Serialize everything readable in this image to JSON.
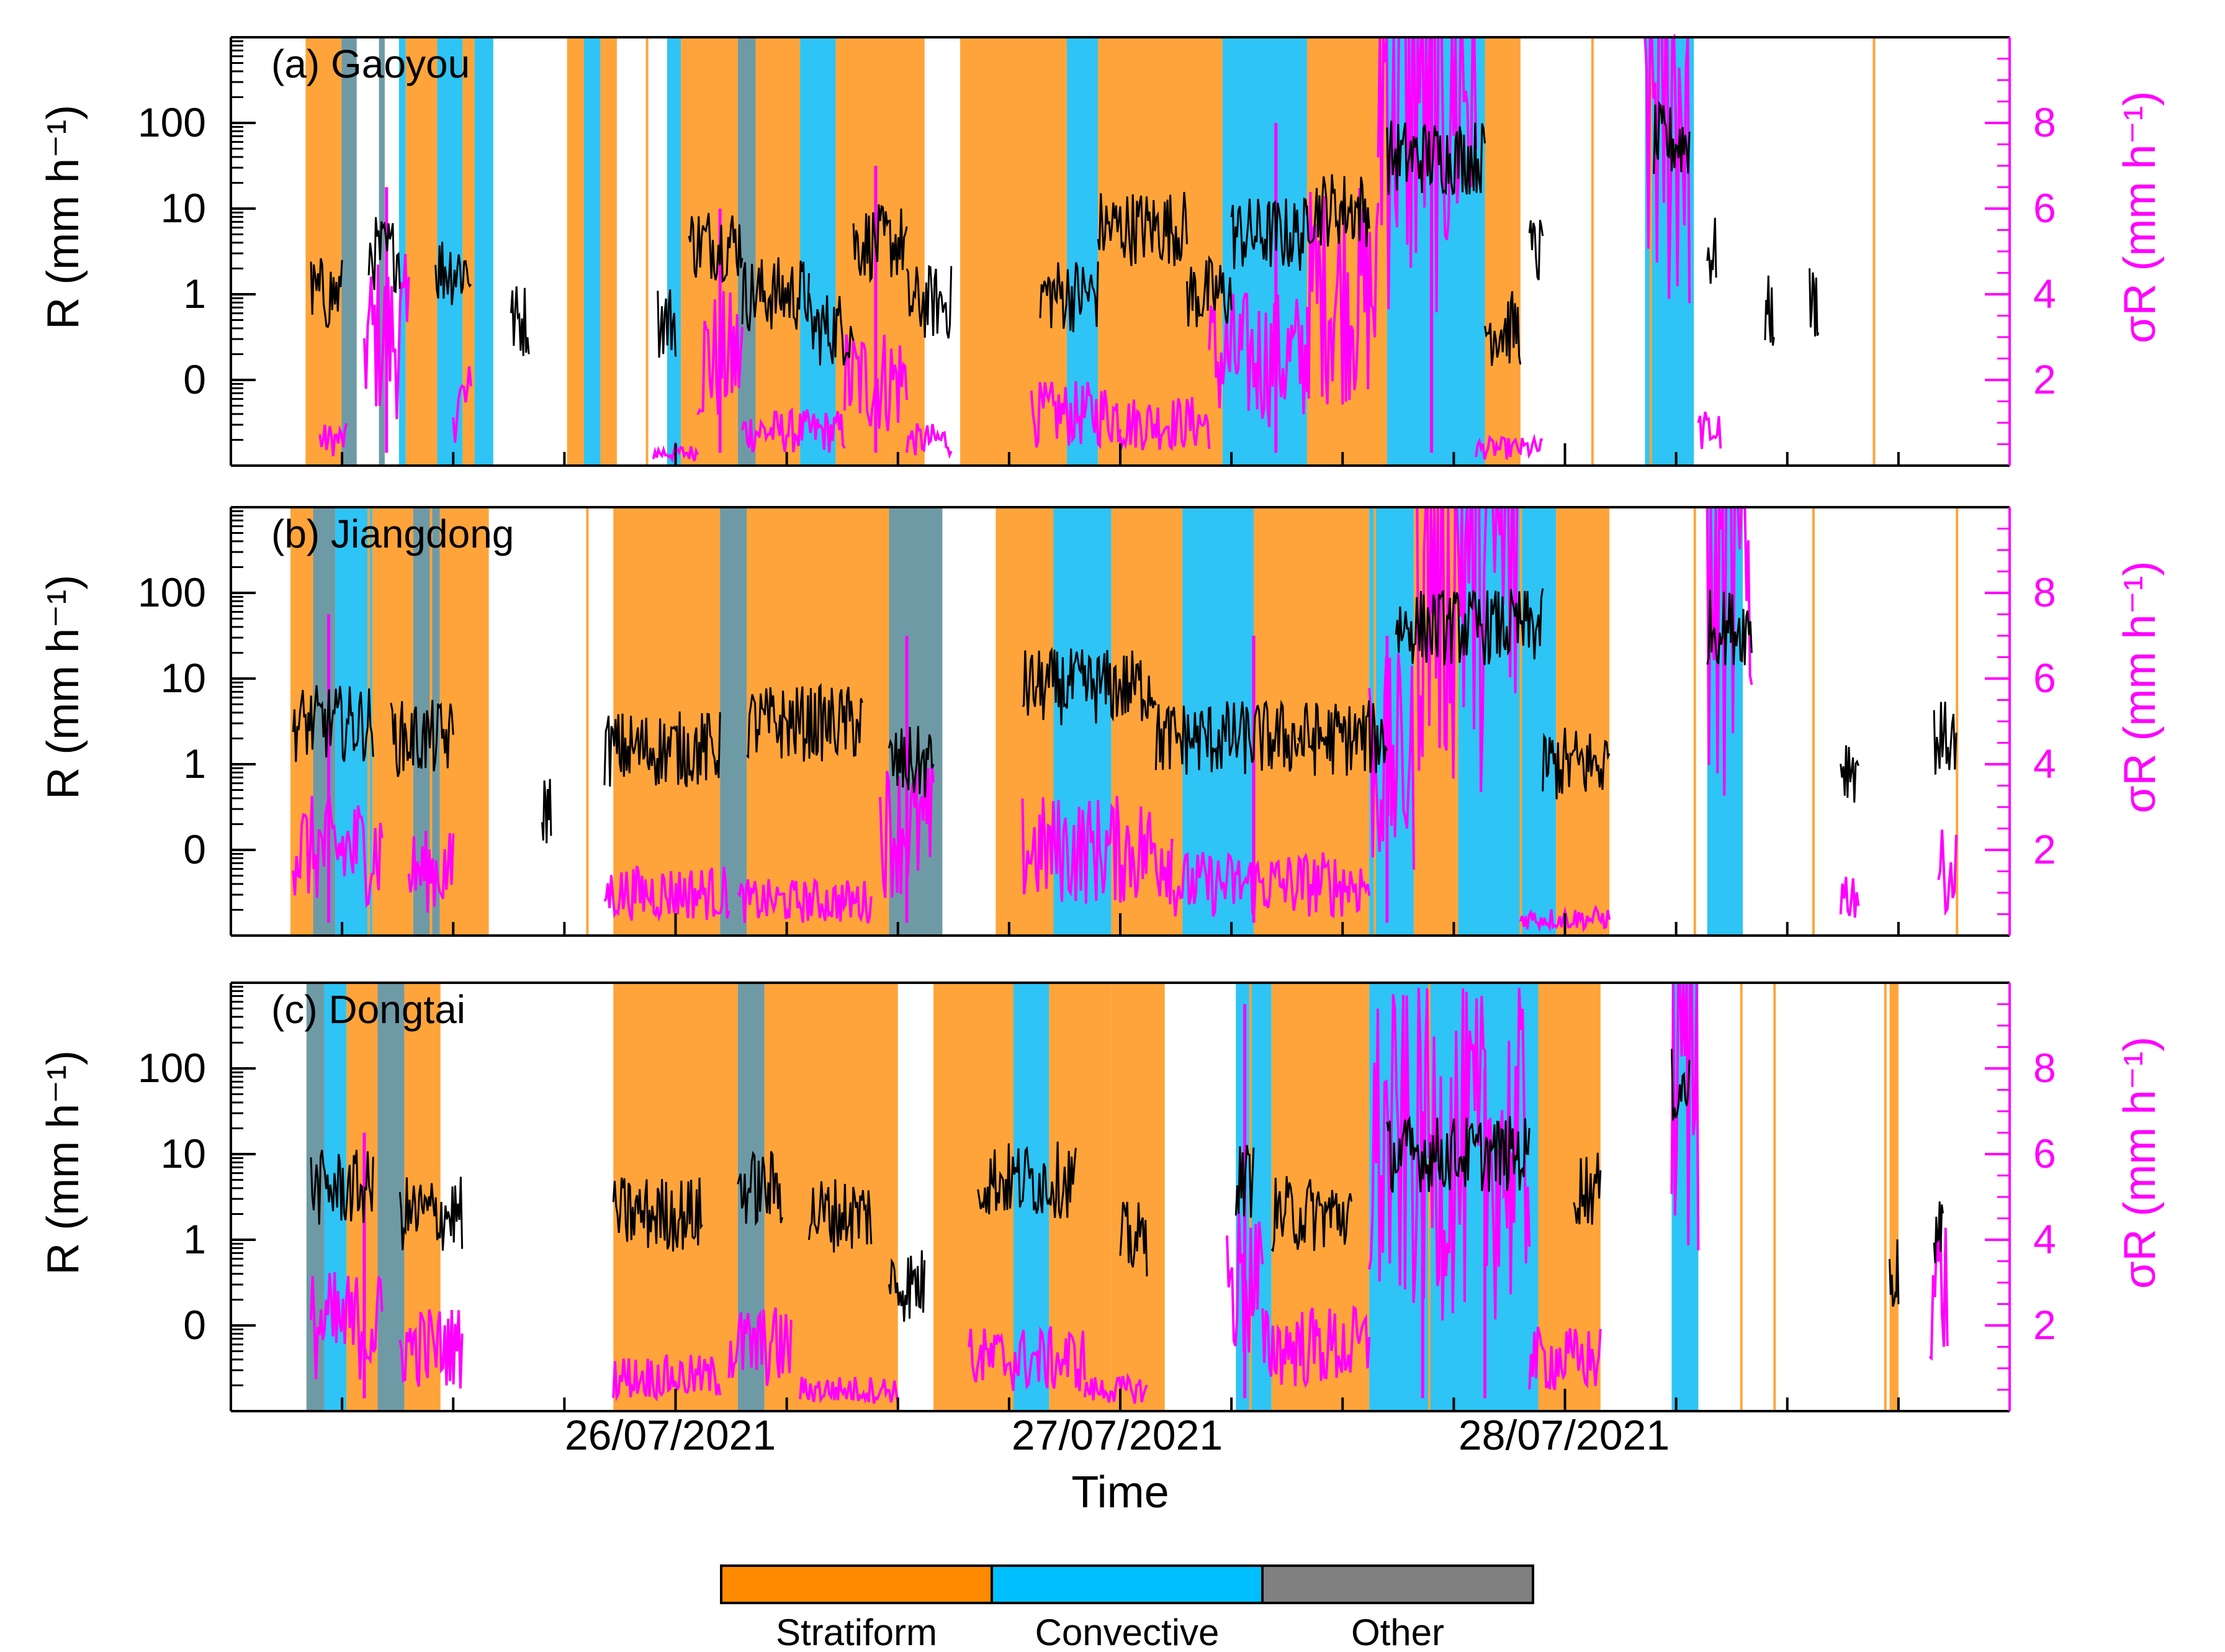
{
  "figure": {
    "xlabel": "Time",
    "x_ticks": [
      "26/07/2021",
      "27/07/2021",
      "28/07/2021"
    ],
    "legend": {
      "placement": "bottom-center",
      "entries": [
        {
          "label": "Stratiform",
          "color": "#FF8A00"
        },
        {
          "label": "Convective",
          "color": "#00BFFF"
        },
        {
          "label": "Other",
          "color": "#808080"
        }
      ]
    }
  },
  "colors": {
    "stratiform_band": "#FFA43A",
    "convective_band": "#2EC4F5",
    "other_band": "#6E9AA6",
    "rain_rate": "#000000",
    "sigma": "#FF00FF"
  },
  "chart_data": [
    {
      "type": "line",
      "station_label": "(a) Gaoyou",
      "x_range": [
        "25/07/2021 00:00",
        "29/07/2021 00:00"
      ],
      "y_left": {
        "label": "R (mm h⁻¹)",
        "scale": "log",
        "ticks": [
          "0",
          "1",
          "10",
          "100"
        ]
      },
      "y_right": {
        "label": "σR (mm h⁻¹)",
        "range": [
          0,
          10
        ],
        "ticks": [
          "2",
          "4",
          "6",
          "8"
        ]
      },
      "classification_periods": [
        {
          "start": 0.168,
          "end": 0.249,
          "class": "Stratiform"
        },
        {
          "start": 0.249,
          "end": 0.283,
          "class": "Other"
        },
        {
          "start": 0.333,
          "end": 0.346,
          "class": "Other"
        },
        {
          "start": 0.378,
          "end": 0.393,
          "class": "Convective"
        },
        {
          "start": 0.393,
          "end": 0.464,
          "class": "Stratiform"
        },
        {
          "start": 0.464,
          "end": 0.521,
          "class": "Convective"
        },
        {
          "start": 0.521,
          "end": 0.548,
          "class": "Stratiform"
        },
        {
          "start": 0.548,
          "end": 0.59,
          "class": "Convective"
        },
        {
          "start": 0.756,
          "end": 0.794,
          "class": "Stratiform"
        },
        {
          "start": 0.794,
          "end": 0.831,
          "class": "Convective"
        },
        {
          "start": 0.831,
          "end": 0.868,
          "class": "Stratiform"
        },
        {
          "start": 0.981,
          "end": 1.012,
          "class": "Convective"
        },
        {
          "start": 1.012,
          "end": 1.14,
          "class": "Stratiform"
        },
        {
          "start": 1.14,
          "end": 1.18,
          "class": "Other"
        },
        {
          "start": 1.18,
          "end": 1.28,
          "class": "Stratiform"
        },
        {
          "start": 1.28,
          "end": 1.36,
          "class": "Convective"
        },
        {
          "start": 1.36,
          "end": 1.56,
          "class": "Stratiform"
        },
        {
          "start": 1.64,
          "end": 1.88,
          "class": "Stratiform"
        },
        {
          "start": 1.88,
          "end": 1.95,
          "class": "Convective"
        },
        {
          "start": 1.95,
          "end": 2.23,
          "class": "Stratiform"
        },
        {
          "start": 2.23,
          "end": 2.42,
          "class": "Convective"
        },
        {
          "start": 2.42,
          "end": 2.6,
          "class": "Stratiform"
        },
        {
          "start": 2.6,
          "end": 2.82,
          "class": "Convective"
        },
        {
          "start": 2.82,
          "end": 2.9,
          "class": "Stratiform"
        },
        {
          "start": 3.18,
          "end": 3.29,
          "class": "Convective"
        }
      ],
      "rain_rate_segments": [
        {
          "start": 0.18,
          "end": 0.25,
          "level": 1
        },
        {
          "start": 0.31,
          "end": 0.38,
          "level": 3
        },
        {
          "start": 0.46,
          "end": 0.54,
          "level": 2
        },
        {
          "start": 0.63,
          "end": 0.67,
          "level": 0.5
        },
        {
          "start": 0.96,
          "end": 1.0,
          "level": 0.5
        },
        {
          "start": 1.03,
          "end": 1.15,
          "level": 4
        },
        {
          "start": 1.15,
          "end": 1.3,
          "level": 1
        },
        {
          "start": 1.3,
          "end": 1.4,
          "level": 0.4
        },
        {
          "start": 1.4,
          "end": 1.52,
          "level": 4
        },
        {
          "start": 1.52,
          "end": 1.62,
          "level": 0.8
        },
        {
          "start": 1.82,
          "end": 1.95,
          "level": 1
        },
        {
          "start": 1.95,
          "end": 2.15,
          "level": 6
        },
        {
          "start": 2.15,
          "end": 2.25,
          "level": 1
        },
        {
          "start": 2.25,
          "end": 2.42,
          "level": 5
        },
        {
          "start": 2.42,
          "end": 2.56,
          "level": 10
        },
        {
          "start": 2.6,
          "end": 2.82,
          "level": 40
        },
        {
          "start": 2.82,
          "end": 2.9,
          "level": 0.4
        },
        {
          "start": 2.92,
          "end": 2.95,
          "level": 3
        },
        {
          "start": 3.2,
          "end": 3.28,
          "level": 60
        },
        {
          "start": 3.32,
          "end": 3.34,
          "level": 3
        },
        {
          "start": 3.45,
          "end": 3.47,
          "level": 0.6
        },
        {
          "start": 3.55,
          "end": 3.57,
          "level": 0.8
        }
      ],
      "sigma_r_segments": [
        {
          "start": 0.2,
          "end": 0.26,
          "level": 0.6
        },
        {
          "start": 0.3,
          "end": 0.4,
          "level": 3
        },
        {
          "start": 0.5,
          "end": 0.54,
          "level": 1.5
        },
        {
          "start": 0.95,
          "end": 1.05,
          "level": 0.3
        },
        {
          "start": 1.05,
          "end": 1.15,
          "level": 2.5
        },
        {
          "start": 1.15,
          "end": 1.38,
          "level": 0.8
        },
        {
          "start": 1.38,
          "end": 1.52,
          "level": 2
        },
        {
          "start": 1.52,
          "end": 1.62,
          "level": 0.6
        },
        {
          "start": 1.8,
          "end": 2.0,
          "level": 1.2
        },
        {
          "start": 2.0,
          "end": 2.2,
          "level": 1
        },
        {
          "start": 2.2,
          "end": 2.42,
          "level": 2.5
        },
        {
          "start": 2.42,
          "end": 2.58,
          "level": 4
        },
        {
          "start": 2.58,
          "end": 2.8,
          "level": 9.5
        },
        {
          "start": 2.8,
          "end": 2.95,
          "level": 0.4
        },
        {
          "start": 3.18,
          "end": 3.28,
          "level": 9
        },
        {
          "start": 3.3,
          "end": 3.35,
          "level": 0.8
        }
      ],
      "sigma_r_peaks": [
        {
          "x": 0.35,
          "level": 6.5
        },
        {
          "x": 1.1,
          "level": 6
        },
        {
          "x": 1.45,
          "level": 7
        },
        {
          "x": 2.35,
          "level": 8
        },
        {
          "x": 2.7,
          "level": 10
        }
      ]
    },
    {
      "type": "line",
      "station_label": "(b) Jiangdong",
      "x_range": [
        "25/07/2021 00:00",
        "29/07/2021 00:00"
      ],
      "y_left": {
        "label": "R (mm h⁻¹)",
        "scale": "log",
        "ticks": [
          "0",
          "1",
          "10",
          "100"
        ]
      },
      "y_right": {
        "label": "σR (mm h⁻¹)",
        "range": [
          0,
          10
        ],
        "ticks": [
          "2",
          "4",
          "6",
          "8"
        ]
      },
      "classification_periods": [
        {
          "start": 0.134,
          "end": 0.185,
          "class": "Stratiform"
        },
        {
          "start": 0.185,
          "end": 0.235,
          "class": "Other"
        },
        {
          "start": 0.235,
          "end": 0.318,
          "class": "Convective"
        },
        {
          "start": 0.318,
          "end": 0.41,
          "class": "Stratiform"
        },
        {
          "start": 0.41,
          "end": 0.47,
          "class": "Other"
        },
        {
          "start": 0.47,
          "end": 0.58,
          "class": "Stratiform"
        },
        {
          "start": 0.86,
          "end": 1.1,
          "class": "Stratiform"
        },
        {
          "start": 1.1,
          "end": 1.16,
          "class": "Other"
        },
        {
          "start": 1.16,
          "end": 1.48,
          "class": "Stratiform"
        },
        {
          "start": 1.48,
          "end": 1.6,
          "class": "Other"
        },
        {
          "start": 1.72,
          "end": 1.85,
          "class": "Stratiform"
        },
        {
          "start": 1.85,
          "end": 1.98,
          "class": "Convective"
        },
        {
          "start": 1.98,
          "end": 2.14,
          "class": "Stratiform"
        },
        {
          "start": 2.14,
          "end": 2.3,
          "class": "Convective"
        },
        {
          "start": 2.3,
          "end": 2.56,
          "class": "Stratiform"
        },
        {
          "start": 2.56,
          "end": 2.66,
          "class": "Convective"
        },
        {
          "start": 2.66,
          "end": 2.76,
          "class": "Stratiform"
        },
        {
          "start": 2.76,
          "end": 2.98,
          "class": "Convective"
        },
        {
          "start": 2.98,
          "end": 3.1,
          "class": "Stratiform"
        },
        {
          "start": 3.32,
          "end": 3.4,
          "class": "Convective"
        }
      ],
      "rain_rate_segments": [
        {
          "start": 0.14,
          "end": 0.32,
          "level": 3
        },
        {
          "start": 0.36,
          "end": 0.5,
          "level": 2
        },
        {
          "start": 0.7,
          "end": 0.72,
          "level": 0.3
        },
        {
          "start": 0.84,
          "end": 1.1,
          "level": 1.5
        },
        {
          "start": 1.16,
          "end": 1.42,
          "level": 3
        },
        {
          "start": 1.48,
          "end": 1.58,
          "level": 1
        },
        {
          "start": 1.78,
          "end": 2.08,
          "level": 8
        },
        {
          "start": 2.08,
          "end": 2.4,
          "level": 2
        },
        {
          "start": 2.4,
          "end": 2.6,
          "level": 2
        },
        {
          "start": 2.62,
          "end": 2.95,
          "level": 40
        },
        {
          "start": 2.95,
          "end": 3.1,
          "level": 1
        },
        {
          "start": 3.32,
          "end": 3.42,
          "level": 40
        },
        {
          "start": 3.62,
          "end": 3.66,
          "level": 1
        },
        {
          "start": 3.83,
          "end": 3.88,
          "level": 2
        }
      ],
      "sigma_r_segments": [
        {
          "start": 0.14,
          "end": 0.34,
          "level": 2
        },
        {
          "start": 0.4,
          "end": 0.5,
          "level": 1.5
        },
        {
          "start": 0.84,
          "end": 1.12,
          "level": 1
        },
        {
          "start": 1.14,
          "end": 1.44,
          "level": 0.8
        },
        {
          "start": 1.46,
          "end": 1.58,
          "level": 2.5
        },
        {
          "start": 1.78,
          "end": 2.12,
          "level": 2
        },
        {
          "start": 2.12,
          "end": 2.56,
          "level": 1.2
        },
        {
          "start": 2.56,
          "end": 2.66,
          "level": 4
        },
        {
          "start": 2.66,
          "end": 2.9,
          "level": 9.5
        },
        {
          "start": 2.9,
          "end": 3.1,
          "level": 0.4
        },
        {
          "start": 3.32,
          "end": 3.42,
          "level": 8.5
        },
        {
          "start": 3.62,
          "end": 3.66,
          "level": 1
        },
        {
          "start": 3.84,
          "end": 3.88,
          "level": 1.5
        }
      ],
      "sigma_r_peaks": [
        {
          "x": 0.22,
          "level": 7.5
        },
        {
          "x": 1.52,
          "level": 7
        },
        {
          "x": 2.3,
          "level": 7
        },
        {
          "x": 2.6,
          "level": 7
        }
      ]
    },
    {
      "type": "line",
      "station_label": "(c) Dongtai",
      "x_range": [
        "25/07/2021 00:00",
        "29/07/2021 00:00"
      ],
      "y_left": {
        "label": "R (mm h⁻¹)",
        "scale": "log",
        "ticks": [
          "0",
          "1",
          "10",
          "100"
        ]
      },
      "y_right": {
        "label": "σR (mm h⁻¹)",
        "range": [
          0,
          10
        ],
        "ticks": [
          "2",
          "4",
          "6",
          "8"
        ]
      },
      "classification_periods": [
        {
          "start": 0.17,
          "end": 0.21,
          "class": "Other"
        },
        {
          "start": 0.21,
          "end": 0.26,
          "class": "Convective"
        },
        {
          "start": 0.26,
          "end": 0.33,
          "class": "Stratiform"
        },
        {
          "start": 0.33,
          "end": 0.39,
          "class": "Other"
        },
        {
          "start": 0.39,
          "end": 0.47,
          "class": "Stratiform"
        },
        {
          "start": 0.86,
          "end": 1.14,
          "class": "Stratiform"
        },
        {
          "start": 1.14,
          "end": 1.2,
          "class": "Other"
        },
        {
          "start": 1.2,
          "end": 1.5,
          "class": "Stratiform"
        },
        {
          "start": 1.58,
          "end": 1.76,
          "class": "Stratiform"
        },
        {
          "start": 1.76,
          "end": 1.84,
          "class": "Convective"
        },
        {
          "start": 1.84,
          "end": 1.98,
          "class": "Stratiform"
        },
        {
          "start": 1.98,
          "end": 2.1,
          "class": "Stratiform"
        },
        {
          "start": 2.26,
          "end": 2.34,
          "class": "Convective"
        },
        {
          "start": 2.34,
          "end": 2.56,
          "class": "Stratiform"
        },
        {
          "start": 2.56,
          "end": 2.94,
          "class": "Convective"
        },
        {
          "start": 2.94,
          "end": 3.08,
          "class": "Stratiform"
        },
        {
          "start": 3.24,
          "end": 3.3,
          "class": "Convective"
        },
        {
          "start": 3.73,
          "end": 3.75,
          "class": "Stratiform"
        }
      ],
      "rain_rate_segments": [
        {
          "start": 0.18,
          "end": 0.32,
          "level": 4
        },
        {
          "start": 0.38,
          "end": 0.52,
          "level": 2
        },
        {
          "start": 0.86,
          "end": 1.06,
          "level": 2
        },
        {
          "start": 1.14,
          "end": 1.24,
          "level": 4
        },
        {
          "start": 1.3,
          "end": 1.44,
          "level": 2
        },
        {
          "start": 1.48,
          "end": 1.56,
          "level": 0.3
        },
        {
          "start": 1.68,
          "end": 1.9,
          "level": 5
        },
        {
          "start": 2.0,
          "end": 2.06,
          "level": 1
        },
        {
          "start": 2.26,
          "end": 2.3,
          "level": 5
        },
        {
          "start": 2.34,
          "end": 2.52,
          "level": 2
        },
        {
          "start": 2.6,
          "end": 2.92,
          "level": 10
        },
        {
          "start": 3.02,
          "end": 3.08,
          "level": 4
        },
        {
          "start": 3.24,
          "end": 3.28,
          "level": 60
        },
        {
          "start": 3.73,
          "end": 3.75,
          "level": 0.4
        },
        {
          "start": 3.83,
          "end": 3.85,
          "level": 1
        }
      ],
      "sigma_r_segments": [
        {
          "start": 0.18,
          "end": 0.34,
          "level": 2
        },
        {
          "start": 0.38,
          "end": 0.52,
          "level": 1.5
        },
        {
          "start": 0.86,
          "end": 1.1,
          "level": 0.8
        },
        {
          "start": 1.12,
          "end": 1.26,
          "level": 1.5
        },
        {
          "start": 1.28,
          "end": 1.5,
          "level": 0.5
        },
        {
          "start": 1.66,
          "end": 1.92,
          "level": 1.2
        },
        {
          "start": 1.92,
          "end": 2.06,
          "level": 0.5
        },
        {
          "start": 2.24,
          "end": 2.32,
          "level": 3
        },
        {
          "start": 2.32,
          "end": 2.56,
          "level": 1.5
        },
        {
          "start": 2.56,
          "end": 2.92,
          "level": 6
        },
        {
          "start": 2.92,
          "end": 3.08,
          "level": 1.2
        },
        {
          "start": 3.24,
          "end": 3.3,
          "level": 9
        },
        {
          "start": 3.82,
          "end": 3.86,
          "level": 3
        }
      ],
      "sigma_r_peaks": [
        {
          "x": 0.3,
          "level": 6.5
        },
        {
          "x": 2.28,
          "level": 9.5
        },
        {
          "x": 2.68,
          "level": 7
        },
        {
          "x": 2.82,
          "level": 8
        }
      ]
    }
  ]
}
